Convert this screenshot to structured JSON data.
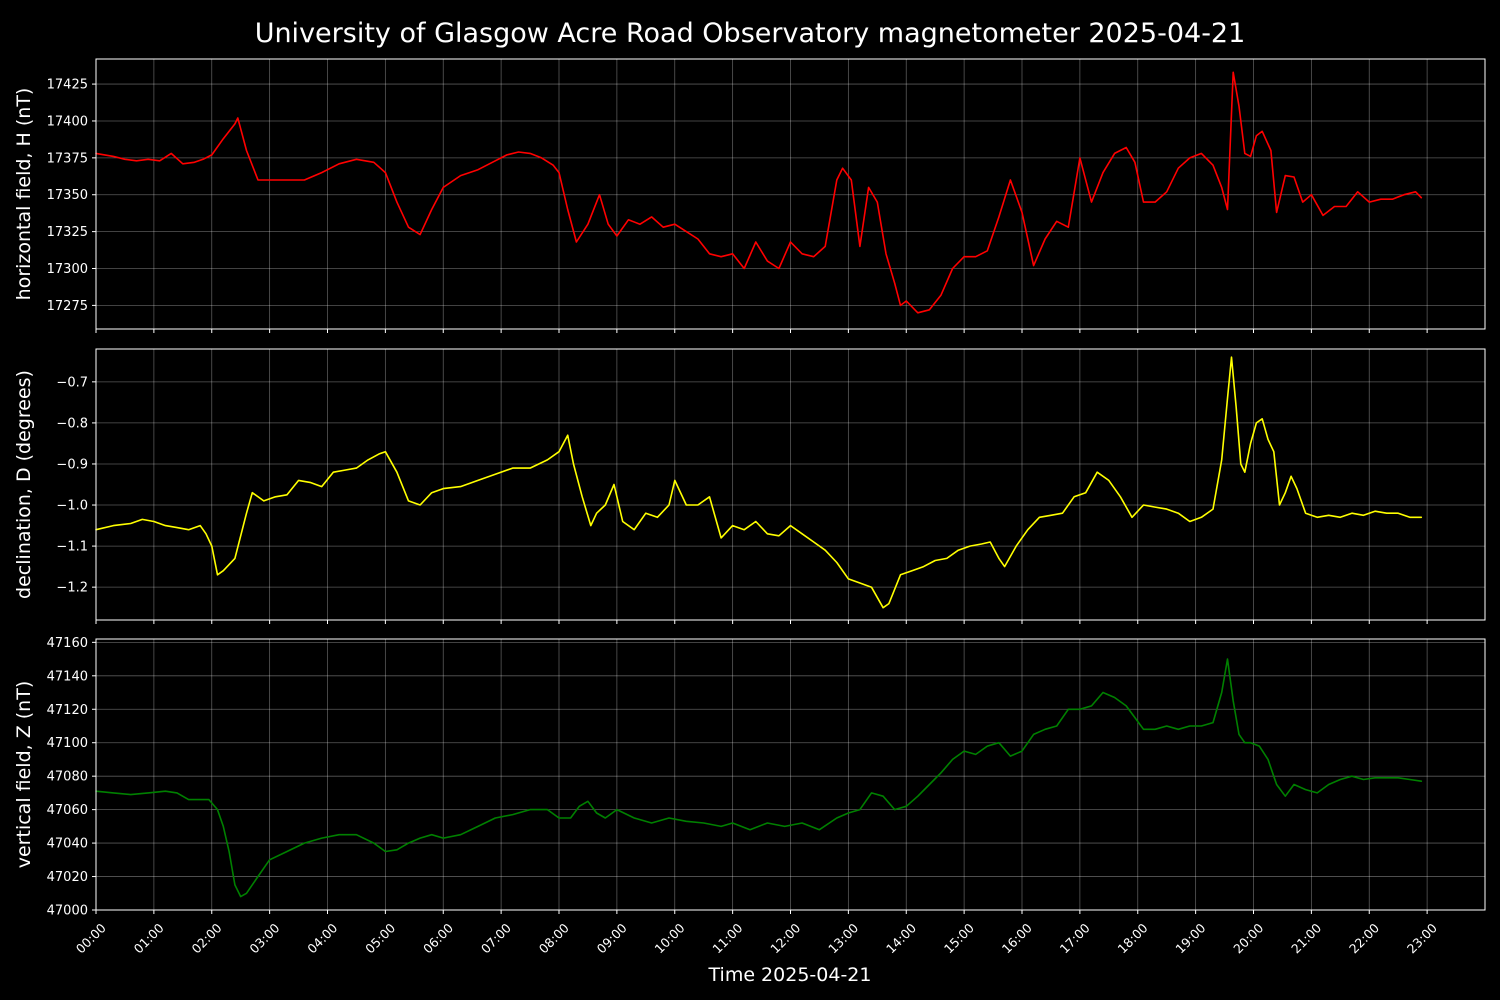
{
  "title": "University of Glasgow Acre Road Observatory magnetometer 2025-04-21",
  "xlabel": "Time 2025-04-21",
  "chart_data": [
    {
      "type": "line",
      "ylabel": "horizontal field, H (nT)",
      "color": "#ff0000",
      "ylim": [
        17259,
        17442
      ],
      "yticks": [
        17275,
        17300,
        17325,
        17350,
        17375,
        17400,
        17425
      ],
      "ytick_labels": [
        "17275",
        "17300",
        "17325",
        "17350",
        "17375",
        "17400",
        "17425"
      ],
      "xlim": [
        0,
        24
      ],
      "grid": true,
      "series": [
        {
          "x": [
            0,
            0.3,
            0.5,
            0.7,
            0.9,
            1.1,
            1.3,
            1.5,
            1.7,
            1.85,
            2.0,
            2.2,
            2.4,
            2.45,
            2.6,
            2.8,
            3.0,
            3.3,
            3.6,
            3.9,
            4.2,
            4.5,
            4.8,
            5.0,
            5.2,
            5.4,
            5.6,
            5.8,
            6.0,
            6.3,
            6.6,
            6.9,
            7.1,
            7.3,
            7.5,
            7.7,
            7.9,
            8.0,
            8.15,
            8.3,
            8.5,
            8.7,
            8.85,
            9.0,
            9.2,
            9.4,
            9.6,
            9.8,
            10.0,
            10.2,
            10.4,
            10.6,
            10.8,
            11.0,
            11.2,
            11.4,
            11.6,
            11.8,
            12.0,
            12.2,
            12.4,
            12.6,
            12.8,
            12.9,
            13.05,
            13.2,
            13.35,
            13.5,
            13.65,
            13.8,
            13.9,
            14.0,
            14.2,
            14.4,
            14.6,
            14.8,
            15.0,
            15.2,
            15.4,
            15.6,
            15.8,
            16.0,
            16.2,
            16.4,
            16.6,
            16.8,
            17.0,
            17.2,
            17.4,
            17.6,
            17.8,
            17.95,
            18.1,
            18.3,
            18.5,
            18.7,
            18.9,
            19.1,
            19.3,
            19.45,
            19.55,
            19.65,
            19.75,
            19.85,
            19.95,
            20.05,
            20.15,
            20.3,
            20.4,
            20.55,
            20.7,
            20.85,
            21.0,
            21.2,
            21.4,
            21.6,
            21.8,
            22.0,
            22.2,
            22.4,
            22.6,
            22.8,
            22.9
          ],
          "y": [
            17378,
            17376,
            17374,
            17373,
            17374,
            17373,
            17378,
            17371,
            17372,
            17374,
            17377,
            17388,
            17398,
            17402,
            17380,
            17360,
            17360,
            17360,
            17360,
            17365,
            17371,
            17374,
            17372,
            17365,
            17345,
            17328,
            17323,
            17340,
            17355,
            17363,
            17367,
            17373,
            17377,
            17379,
            17378,
            17375,
            17370,
            17365,
            17340,
            17318,
            17330,
            17350,
            17330,
            17322,
            17333,
            17330,
            17335,
            17328,
            17330,
            17325,
            17320,
            17310,
            17308,
            17310,
            17300,
            17318,
            17305,
            17300,
            17318,
            17310,
            17308,
            17315,
            17360,
            17368,
            17360,
            17315,
            17355,
            17345,
            17310,
            17290,
            17275,
            17278,
            17270,
            17272,
            17282,
            17300,
            17308,
            17308,
            17312,
            17335,
            17360,
            17338,
            17302,
            17320,
            17332,
            17328,
            17375,
            17345,
            17365,
            17378,
            17382,
            17372,
            17345,
            17345,
            17352,
            17368,
            17375,
            17378,
            17370,
            17355,
            17340,
            17433,
            17410,
            17378,
            17376,
            17390,
            17393,
            17380,
            17338,
            17363,
            17362,
            17345,
            17350,
            17336,
            17342,
            17342,
            17352,
            17345,
            17347,
            17347,
            17350,
            17352,
            17348
          ]
        }
      ]
    },
    {
      "type": "line",
      "ylabel": "declination, D (degrees)",
      "color": "#ffff00",
      "ylim": [
        -1.28,
        -0.62
      ],
      "yticks": [
        -1.2,
        -1.1,
        -1.0,
        -0.9,
        -0.8,
        -0.7
      ],
      "ytick_labels": [
        "−1.2",
        "−1.1",
        "−1.0",
        "−0.9",
        "−0.8",
        "−0.7"
      ],
      "xlim": [
        0,
        24
      ],
      "grid": true,
      "series": [
        {
          "x": [
            0,
            0.3,
            0.6,
            0.8,
            1.0,
            1.2,
            1.4,
            1.6,
            1.8,
            1.9,
            2.0,
            2.1,
            2.2,
            2.4,
            2.6,
            2.7,
            2.9,
            3.1,
            3.3,
            3.5,
            3.7,
            3.9,
            4.1,
            4.3,
            4.5,
            4.7,
            4.9,
            5.0,
            5.2,
            5.4,
            5.6,
            5.8,
            6.0,
            6.3,
            6.6,
            6.9,
            7.2,
            7.5,
            7.8,
            8.0,
            8.15,
            8.25,
            8.4,
            8.55,
            8.65,
            8.8,
            8.95,
            9.1,
            9.3,
            9.5,
            9.7,
            9.9,
            10.0,
            10.2,
            10.4,
            10.6,
            10.8,
            11.0,
            11.2,
            11.4,
            11.6,
            11.8,
            12.0,
            12.2,
            12.4,
            12.6,
            12.8,
            13.0,
            13.2,
            13.4,
            13.6,
            13.7,
            13.9,
            14.1,
            14.3,
            14.5,
            14.7,
            14.9,
            15.1,
            15.3,
            15.45,
            15.6,
            15.7,
            15.9,
            16.1,
            16.3,
            16.5,
            16.7,
            16.9,
            17.1,
            17.3,
            17.5,
            17.7,
            17.9,
            18.1,
            18.3,
            18.5,
            18.7,
            18.9,
            19.1,
            19.3,
            19.45,
            19.55,
            19.62,
            19.7,
            19.78,
            19.85,
            19.95,
            20.05,
            20.15,
            20.25,
            20.35,
            20.45,
            20.55,
            20.65,
            20.75,
            20.9,
            21.1,
            21.3,
            21.5,
            21.7,
            21.9,
            22.1,
            22.3,
            22.5,
            22.7,
            22.9
          ],
          "y": [
            -1.06,
            -1.05,
            -1.045,
            -1.035,
            -1.04,
            -1.05,
            -1.055,
            -1.06,
            -1.05,
            -1.07,
            -1.1,
            -1.17,
            -1.16,
            -1.13,
            -1.02,
            -0.97,
            -0.99,
            -0.98,
            -0.975,
            -0.94,
            -0.945,
            -0.955,
            -0.92,
            -0.915,
            -0.91,
            -0.89,
            -0.875,
            -0.87,
            -0.92,
            -0.99,
            -1.0,
            -0.97,
            -0.96,
            -0.955,
            -0.94,
            -0.925,
            -0.91,
            -0.91,
            -0.89,
            -0.87,
            -0.83,
            -0.9,
            -0.98,
            -1.05,
            -1.02,
            -1.0,
            -0.95,
            -1.04,
            -1.06,
            -1.02,
            -1.03,
            -1.0,
            -0.94,
            -1.0,
            -1.0,
            -0.98,
            -1.08,
            -1.05,
            -1.06,
            -1.04,
            -1.07,
            -1.075,
            -1.05,
            -1.07,
            -1.09,
            -1.11,
            -1.14,
            -1.18,
            -1.19,
            -1.2,
            -1.25,
            -1.24,
            -1.17,
            -1.16,
            -1.15,
            -1.135,
            -1.13,
            -1.11,
            -1.1,
            -1.095,
            -1.09,
            -1.13,
            -1.15,
            -1.1,
            -1.06,
            -1.03,
            -1.025,
            -1.02,
            -0.98,
            -0.97,
            -0.92,
            -0.94,
            -0.98,
            -1.03,
            -1.0,
            -1.005,
            -1.01,
            -1.02,
            -1.04,
            -1.03,
            -1.01,
            -0.89,
            -0.74,
            -0.64,
            -0.76,
            -0.9,
            -0.92,
            -0.85,
            -0.8,
            -0.79,
            -0.84,
            -0.87,
            -1.0,
            -0.97,
            -0.93,
            -0.96,
            -1.02,
            -1.03,
            -1.025,
            -1.03,
            -1.02,
            -1.025,
            -1.015,
            -1.02,
            -1.02,
            -1.03,
            -1.03
          ]
        }
      ]
    },
    {
      "type": "line",
      "ylabel": "vertical field, Z (nT)",
      "color": "#008000",
      "ylim": [
        47000,
        47162
      ],
      "yticks": [
        47000,
        47020,
        47040,
        47060,
        47080,
        47100,
        47120,
        47140,
        47160
      ],
      "ytick_labels": [
        "47000",
        "47020",
        "47040",
        "47060",
        "47080",
        "47100",
        "47120",
        "47140",
        "47160"
      ],
      "xlim": [
        0,
        24
      ],
      "grid": true,
      "series": [
        {
          "x": [
            0,
            0.3,
            0.6,
            0.9,
            1.2,
            1.4,
            1.6,
            1.8,
            1.95,
            2.1,
            2.2,
            2.3,
            2.4,
            2.5,
            2.6,
            2.8,
            3.0,
            3.3,
            3.6,
            3.9,
            4.2,
            4.5,
            4.8,
            5.0,
            5.2,
            5.4,
            5.6,
            5.8,
            6.0,
            6.3,
            6.6,
            6.9,
            7.2,
            7.5,
            7.8,
            8.0,
            8.2,
            8.35,
            8.5,
            8.65,
            8.8,
            9.0,
            9.3,
            9.6,
            9.9,
            10.2,
            10.5,
            10.8,
            11.0,
            11.3,
            11.6,
            11.9,
            12.2,
            12.5,
            12.8,
            13.0,
            13.2,
            13.4,
            13.6,
            13.8,
            14.0,
            14.2,
            14.4,
            14.6,
            14.8,
            15.0,
            15.2,
            15.4,
            15.6,
            15.8,
            16.0,
            16.2,
            16.4,
            16.6,
            16.8,
            17.0,
            17.2,
            17.4,
            17.6,
            17.8,
            17.95,
            18.1,
            18.3,
            18.5,
            18.7,
            18.9,
            19.1,
            19.3,
            19.45,
            19.55,
            19.65,
            19.75,
            19.85,
            19.95,
            20.1,
            20.25,
            20.4,
            20.55,
            20.7,
            20.9,
            21.1,
            21.3,
            21.5,
            21.7,
            21.9,
            22.1,
            22.3,
            22.5,
            22.7,
            22.9
          ],
          "y": [
            47071,
            47070,
            47069,
            47070,
            47071,
            47070,
            47066,
            47066,
            47066,
            47060,
            47050,
            47035,
            47015,
            47008,
            47010,
            47020,
            47030,
            47035,
            47040,
            47043,
            47045,
            47045,
            47040,
            47035,
            47036,
            47040,
            47043,
            47045,
            47043,
            47045,
            47050,
            47055,
            47057,
            47060,
            47060,
            47055,
            47055,
            47062,
            47065,
            47058,
            47055,
            47060,
            47055,
            47052,
            47055,
            47053,
            47052,
            47050,
            47052,
            47048,
            47052,
            47050,
            47052,
            47048,
            47055,
            47058,
            47060,
            47070,
            47068,
            47060,
            47062,
            47068,
            47075,
            47082,
            47090,
            47095,
            47093,
            47098,
            47100,
            47092,
            47095,
            47105,
            47108,
            47110,
            47120,
            47120,
            47122,
            47130,
            47127,
            47122,
            47115,
            47108,
            47108,
            47110,
            47108,
            47110,
            47110,
            47112,
            47130,
            47150,
            47125,
            47105,
            47100,
            47100,
            47098,
            47090,
            47075,
            47068,
            47075,
            47072,
            47070,
            47075,
            47078,
            47080,
            47078,
            47079,
            47079,
            47079,
            47078,
            47077
          ]
        }
      ]
    }
  ],
  "xticks": [
    0,
    1,
    2,
    3,
    4,
    5,
    6,
    7,
    8,
    9,
    10,
    11,
    12,
    13,
    14,
    15,
    16,
    17,
    18,
    19,
    20,
    21,
    22,
    23
  ],
  "xtick_labels": [
    "00:00",
    "01:00",
    "02:00",
    "03:00",
    "04:00",
    "05:00",
    "06:00",
    "07:00",
    "08:00",
    "09:00",
    "10:00",
    "11:00",
    "12:00",
    "13:00",
    "14:00",
    "15:00",
    "16:00",
    "17:00",
    "18:00",
    "19:00",
    "20:00",
    "21:00",
    "22:00",
    "23:00"
  ]
}
